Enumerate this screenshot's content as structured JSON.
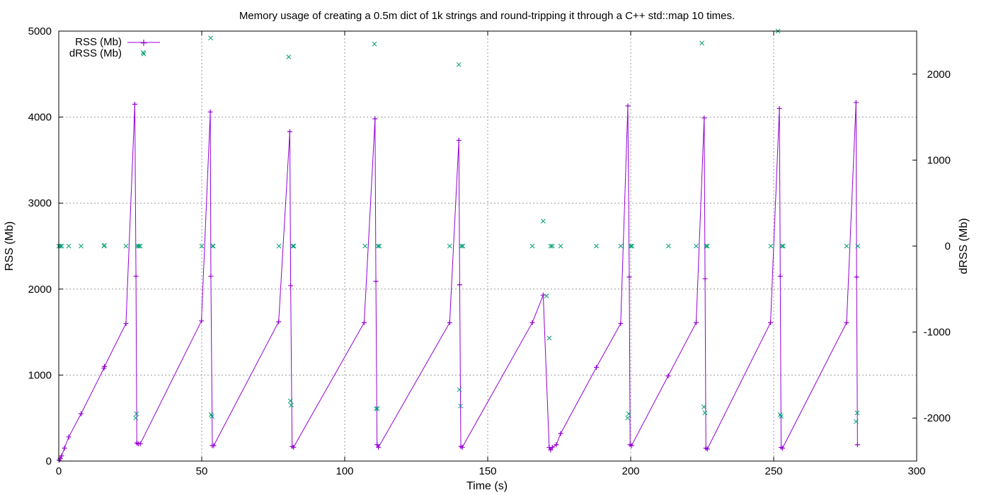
{
  "chart_data": {
    "type": "line",
    "title": "Memory usage of creating a 0.5m dict of 1k strings and round-tripping it through a C++ std::map 10 times.",
    "xlabel": "Time (s)",
    "ylabel": "RSS (Mb)",
    "y2label": "dRSS (Mb)",
    "xlim": [
      0,
      300
    ],
    "ylim": [
      0,
      5000
    ],
    "y2lim": [
      -2500,
      2500
    ],
    "xticks": [
      0,
      50,
      100,
      150,
      200,
      250,
      300
    ],
    "yticks": [
      0,
      1000,
      2000,
      3000,
      4000,
      5000
    ],
    "y2ticks": [
      -2000,
      -1000,
      0,
      1000,
      2000
    ],
    "grid": true,
    "legend_position": "top-left",
    "series": [
      {
        "name": "RSS (Mb)",
        "axis": "left",
        "style": "lines+points",
        "marker": "plus",
        "color": "#9400d3",
        "points": [
          [
            0.1,
            10
          ],
          [
            0.5,
            30
          ],
          [
            1,
            60
          ],
          [
            2,
            150
          ],
          [
            3.5,
            280
          ],
          [
            7.8,
            550
          ],
          [
            15.8,
            1080
          ],
          [
            16,
            1100
          ],
          [
            23.5,
            1600
          ],
          [
            26.6,
            4150
          ],
          [
            27,
            2150
          ],
          [
            27.3,
            210
          ],
          [
            27.8,
            200
          ],
          [
            28.5,
            200
          ],
          [
            49.9,
            1630
          ],
          [
            53,
            4060
          ],
          [
            53.2,
            2150
          ],
          [
            53.7,
            180
          ],
          [
            54.2,
            180
          ],
          [
            76.9,
            1620
          ],
          [
            80.8,
            3830
          ],
          [
            81.1,
            2040
          ],
          [
            81.6,
            170
          ],
          [
            82.1,
            160
          ],
          [
            106.8,
            1610
          ],
          [
            110.6,
            3980
          ],
          [
            110.9,
            2090
          ],
          [
            111.3,
            190
          ],
          [
            111.8,
            160
          ],
          [
            136.7,
            1610
          ],
          [
            139.9,
            3730
          ],
          [
            140.2,
            2050
          ],
          [
            140.6,
            170
          ],
          [
            141.1,
            160
          ],
          [
            165.6,
            1610
          ],
          [
            169.4,
            1930
          ],
          [
            171.5,
            160
          ],
          [
            172,
            130
          ],
          [
            172.6,
            160
          ],
          [
            174,
            190
          ],
          [
            175.5,
            320
          ],
          [
            188,
            1090
          ],
          [
            196.5,
            1600
          ],
          [
            199,
            4130
          ],
          [
            199.5,
            2140
          ],
          [
            199.8,
            190
          ],
          [
            200.3,
            180
          ],
          [
            213.1,
            990
          ],
          [
            222.9,
            1610
          ],
          [
            225.7,
            3990
          ],
          [
            226,
            2120
          ],
          [
            226.3,
            150
          ],
          [
            226.8,
            140
          ],
          [
            248.9,
            1610
          ],
          [
            252,
            4100
          ],
          [
            252.3,
            2150
          ],
          [
            252.6,
            160
          ],
          [
            253.1,
            150
          ],
          [
            275.5,
            1610
          ],
          [
            278.8,
            4170
          ],
          [
            279,
            2140
          ],
          [
            279.3,
            190
          ]
        ]
      },
      {
        "name": "dRSS (Mb)",
        "axis": "right",
        "style": "points",
        "marker": "cross",
        "color": "#009e73",
        "points": [
          [
            0,
            0
          ],
          [
            0.5,
            0
          ],
          [
            1,
            0
          ],
          [
            3.5,
            0
          ],
          [
            7.8,
            0
          ],
          [
            15.8,
            0
          ],
          [
            16,
            10
          ],
          [
            23.5,
            0
          ],
          [
            26.9,
            -2000
          ],
          [
            27.2,
            -1950
          ],
          [
            27.5,
            0
          ],
          [
            28,
            0
          ],
          [
            28.5,
            0
          ],
          [
            29.5,
            2250
          ],
          [
            50,
            0
          ],
          [
            53.3,
            -1960
          ],
          [
            53.6,
            -1980
          ],
          [
            53.8,
            0
          ],
          [
            54,
            0
          ],
          [
            53.1,
            2420
          ],
          [
            77,
            0
          ],
          [
            80.4,
            2200
          ],
          [
            81,
            -1800
          ],
          [
            81.3,
            -1850
          ],
          [
            81.8,
            0
          ],
          [
            82.2,
            0
          ],
          [
            107.1,
            0
          ],
          [
            110.4,
            2350
          ],
          [
            111,
            -1890
          ],
          [
            111.4,
            -1890
          ],
          [
            111.6,
            0
          ],
          [
            112.1,
            0
          ],
          [
            136.7,
            0
          ],
          [
            139.9,
            2110
          ],
          [
            140.1,
            -1670
          ],
          [
            140.5,
            -1860
          ],
          [
            140.8,
            0
          ],
          [
            141.3,
            0
          ],
          [
            165.6,
            0
          ],
          [
            169.4,
            290
          ],
          [
            170.6,
            -580
          ],
          [
            171.5,
            -1070
          ],
          [
            172,
            0
          ],
          [
            172.6,
            0
          ],
          [
            175.5,
            0
          ],
          [
            188,
            0
          ],
          [
            196.5,
            0
          ],
          [
            198.9,
            -2000
          ],
          [
            199.3,
            -1950
          ],
          [
            200,
            0
          ],
          [
            200.4,
            0
          ],
          [
            213.2,
            0
          ],
          [
            222.9,
            0
          ],
          [
            224.9,
            2360
          ],
          [
            225.6,
            -1870
          ],
          [
            226,
            -1940
          ],
          [
            226.4,
            0
          ],
          [
            226.8,
            0
          ],
          [
            249,
            0
          ],
          [
            251.5,
            2500
          ],
          [
            252.3,
            -1960
          ],
          [
            252.6,
            -1980
          ],
          [
            252.9,
            0
          ],
          [
            253.3,
            0
          ],
          [
            275.5,
            0
          ],
          [
            278.8,
            -2040
          ],
          [
            279.2,
            -1940
          ],
          [
            279.4,
            0
          ]
        ]
      }
    ]
  }
}
